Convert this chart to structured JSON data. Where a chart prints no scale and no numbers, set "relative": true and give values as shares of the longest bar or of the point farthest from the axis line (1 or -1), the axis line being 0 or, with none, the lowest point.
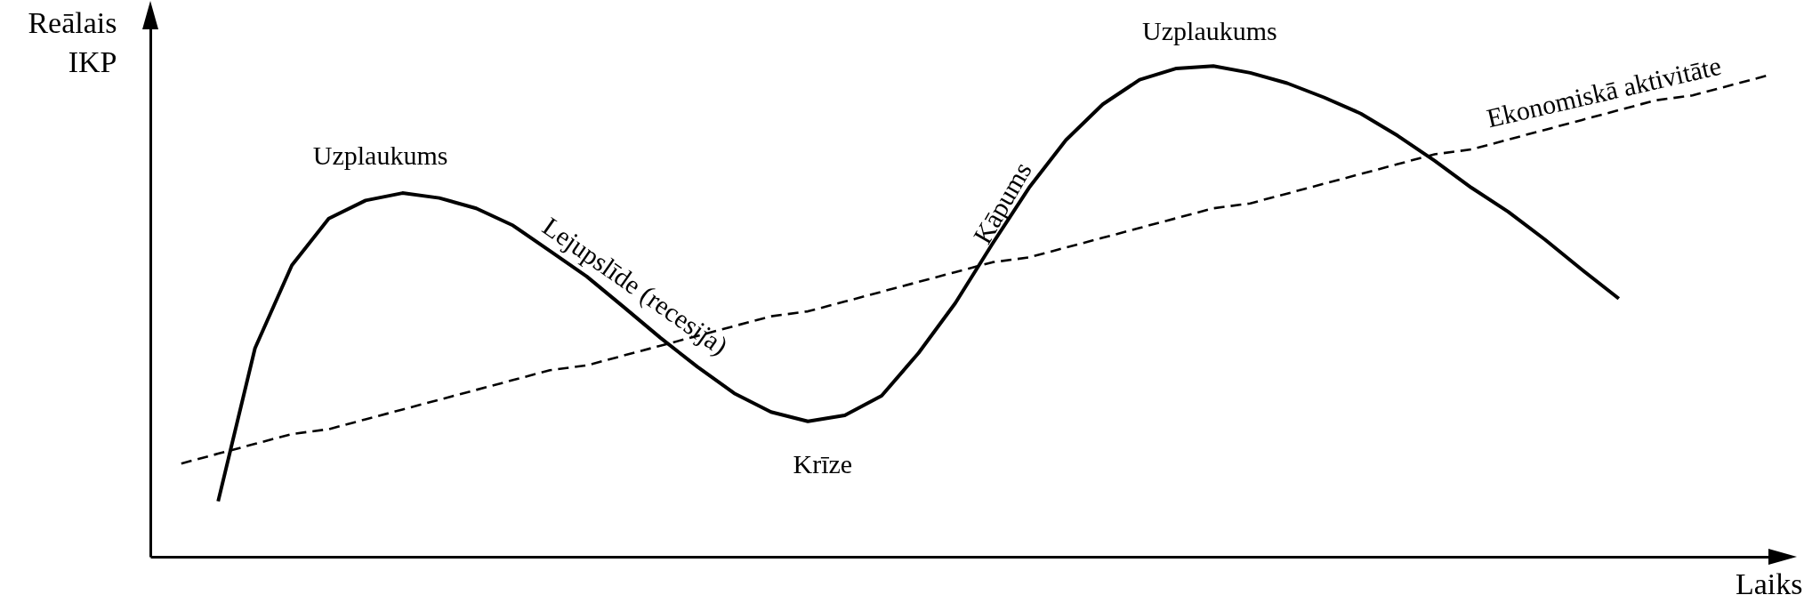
{
  "chart_data": {
    "type": "line",
    "relative": true,
    "ylabel": "Reālais IKP",
    "xlabel": "Laiks",
    "categories": [
      null,
      null,
      null,
      null,
      null,
      null,
      null,
      null,
      null,
      null,
      null,
      null,
      null,
      null,
      null,
      null,
      null,
      null,
      null,
      null,
      null,
      null,
      null,
      null,
      null,
      null,
      null,
      null,
      null,
      null,
      null,
      null,
      null,
      null,
      null,
      null,
      null,
      null,
      null,
      null,
      null,
      null,
      null,
      null
    ],
    "series": [
      {
        "color": "#000000",
        "line_style": "solid",
        "values": [
          null,
          0.113,
          0.425,
          0.594,
          0.689,
          0.726,
          0.741,
          0.731,
          0.71,
          0.675,
          0.623,
          0.571,
          0.509,
          0.446,
          0.387,
          0.333,
          0.295,
          0.276,
          0.288,
          0.328,
          0.415,
          0.517,
          0.637,
          0.752,
          0.849,
          0.922,
          0.972,
          0.995,
          1.0,
          0.986,
          0.965,
          0.936,
          0.903,
          0.858,
          0.807,
          0.752,
          0.703,
          0.646,
          0.585,
          0.526,
          null,
          null,
          null,
          null
        ]
      },
      {
        "color": "#000000",
        "line_style": "dashed",
        "values": [
          0.19,
          0.21,
          0.23,
          0.25,
          0.26,
          0.28,
          0.3,
          0.32,
          0.34,
          0.36,
          0.38,
          0.39,
          0.41,
          0.43,
          0.45,
          0.47,
          0.49,
          0.5,
          0.52,
          0.54,
          0.56,
          0.58,
          0.6,
          0.61,
          0.63,
          0.65,
          0.67,
          0.69,
          0.71,
          0.72,
          0.74,
          0.76,
          0.78,
          0.8,
          0.82,
          0.83,
          0.85,
          0.87,
          0.89,
          0.91,
          0.93,
          0.94,
          0.96,
          0.98
        ]
      }
    ],
    "annotations": [
      "Uzplaukums",
      "Lejupslīde (recesija)",
      "Krīze",
      "Kāpums",
      "Uzplaukums",
      "Ekonomiskā aktivitāte"
    ]
  }
}
